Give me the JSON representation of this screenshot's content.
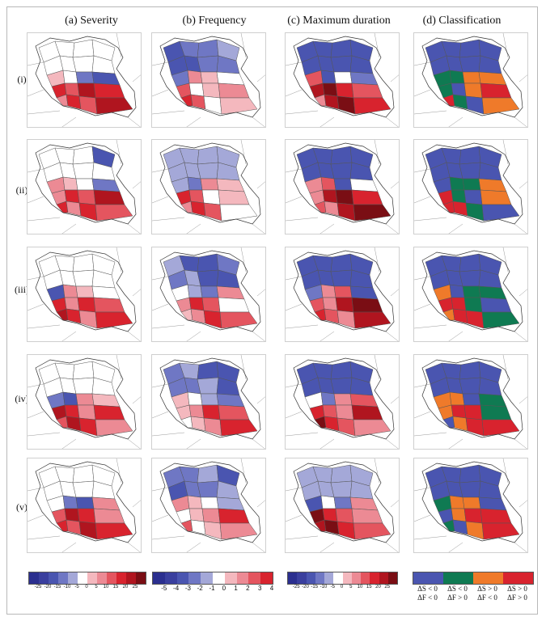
{
  "columns": [
    {
      "id": "severity",
      "label": "(a) Severity"
    },
    {
      "id": "frequency",
      "label": "(b) Frequency"
    },
    {
      "id": "duration",
      "label": "(c) Maximum duration"
    },
    {
      "id": "classification",
      "label": "(d) Classification"
    }
  ],
  "rows": [
    "(i)",
    "(ii)",
    "(iii)",
    "(iv)",
    "(v)"
  ],
  "colors": {
    "blue_dark": "#2b2f8f",
    "blue": "#4a55b0",
    "blue_mid": "#6f77c4",
    "blue_light": "#a4a8d8",
    "white": "#ffffff",
    "pink_light": "#f4b8be",
    "pink": "#ec8a94",
    "red_light": "#e4555f",
    "red": "#d8232e",
    "red_dark": "#b0151f",
    "red_darkest": "#7a0e14",
    "green": "#0f7a52",
    "orange": "#ef7a2a",
    "outline": "#555555"
  },
  "legends": {
    "severity": {
      "ticks": [
        "-25",
        "-20",
        "-15",
        "-10",
        "-5",
        "0",
        "5",
        "10",
        "15",
        "20",
        "25"
      ],
      "colors": [
        "#2b2f8f",
        "#3a3f9e",
        "#4a55b0",
        "#6f77c4",
        "#a4a8d8",
        "#ffffff",
        "#f4b8be",
        "#ec8a94",
        "#e4555f",
        "#d8232e",
        "#b0151f",
        "#7a0e14"
      ]
    },
    "frequency": {
      "ticks": [
        "-5",
        "-4",
        "-3",
        "-2",
        "-1",
        "0",
        "1",
        "2",
        "3",
        "4"
      ],
      "colors": [
        "#2b2f8f",
        "#3a3f9e",
        "#4a55b0",
        "#6f77c4",
        "#a4a8d8",
        "#ffffff",
        "#f4b8be",
        "#ec8a94",
        "#e4555f",
        "#d8232e"
      ]
    },
    "duration": {
      "ticks": [
        "-25",
        "-20",
        "-15",
        "-10",
        "-5",
        "0",
        "5",
        "10",
        "15",
        "20",
        "25"
      ],
      "colors": [
        "#2b2f8f",
        "#3a3f9e",
        "#4a55b0",
        "#6f77c4",
        "#a4a8d8",
        "#ffffff",
        "#f4b8be",
        "#ec8a94",
        "#e4555f",
        "#d8232e",
        "#b0151f",
        "#7a0e14"
      ]
    },
    "classification": [
      {
        "color": "#4a55b0",
        "line1": "ΔS < 0",
        "line2": "ΔF < 0"
      },
      {
        "color": "#0f7a52",
        "line1": "ΔS < 0",
        "line2": "ΔF > 0"
      },
      {
        "color": "#ef7a2a",
        "line1": "ΔS > 0",
        "line2": "ΔF < 0"
      },
      {
        "color": "#d8232e",
        "line1": "ΔS > 0",
        "line2": "ΔF > 0"
      }
    ]
  }
}
